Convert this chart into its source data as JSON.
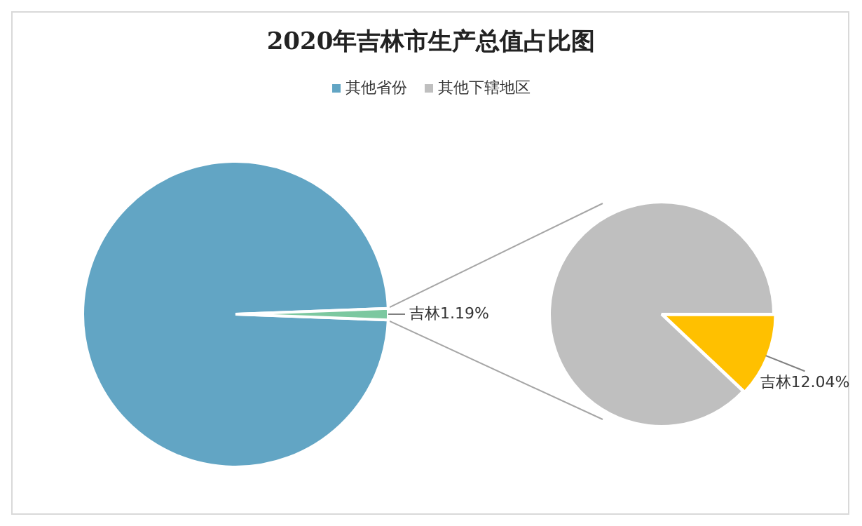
{
  "chart_data": [
    {
      "type": "pie",
      "title": "2020年吉林市生产总值占比图",
      "categories": [
        "其他省份",
        "吉林"
      ],
      "values": [
        98.81,
        1.19
      ],
      "colors": [
        "#62a5c4",
        "#7cc8a0"
      ],
      "value_labels": [
        null,
        "1.19%"
      ],
      "legend": "top"
    },
    {
      "type": "pie",
      "categories": [
        "其他下辖地区",
        "吉林"
      ],
      "values": [
        87.96,
        12.04
      ],
      "colors": [
        "#bfbfbf",
        "#ffc000"
      ],
      "value_labels": [
        null,
        "12.04%"
      ],
      "legend": "top"
    }
  ]
}
